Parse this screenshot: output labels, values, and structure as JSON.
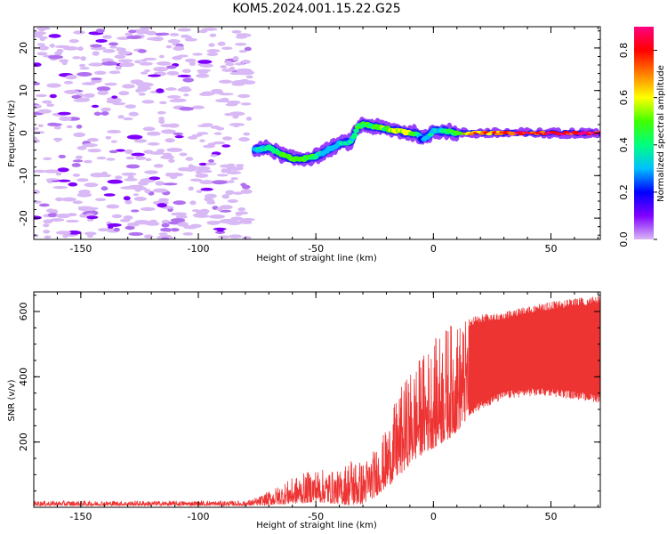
{
  "title": "KOM5.2024.001.15.22.G25",
  "chart_data": [
    {
      "type": "heatmap",
      "xlabel": "Height of straight line (km)",
      "ylabel": "Frequency (Hz)",
      "xlim": [
        -170,
        71
      ],
      "ylim": [
        -25,
        25
      ],
      "xticks": [
        -150,
        -100,
        -50,
        0,
        50
      ],
      "yticks": [
        -20,
        -10,
        0,
        10,
        20
      ],
      "colorbar": {
        "label": "Normalized spectral amplitude",
        "range": [
          0,
          0.9
        ],
        "ticks": [
          "0.0",
          "0.2",
          "0.4",
          "0.6",
          "0.8"
        ],
        "colormap": [
          "#d8b8f5",
          "#8000ff",
          "#0000ff",
          "#00c0ff",
          "#00ff80",
          "#40ff00",
          "#ffff00",
          "#ff8000",
          "#ff0000",
          "#ff0080"
        ]
      },
      "ridge": {
        "description_values": "peak frequency (Hz) vs height (km)",
        "x": [
          -76,
          -70,
          -65,
          -60,
          -55,
          -50,
          -45,
          -40,
          -35,
          -32,
          -30,
          -25,
          -20,
          -15,
          -10,
          -7,
          -5,
          -3,
          0,
          5,
          10,
          20,
          30,
          40,
          50,
          60,
          70
        ],
        "y": [
          -4,
          -3.5,
          -5,
          -6,
          -6,
          -5.5,
          -4,
          -2.5,
          -2,
          1.5,
          2,
          1.5,
          1,
          0.5,
          0,
          0,
          -1.5,
          -1,
          0.5,
          0.5,
          0,
          0,
          0,
          0,
          0,
          0,
          0
        ],
        "amplitude": [
          0.3,
          0.4,
          0.45,
          0.5,
          0.45,
          0.4,
          0.3,
          0.3,
          0.35,
          0.4,
          0.45,
          0.5,
          0.5,
          0.55,
          0.6,
          0.4,
          0.2,
          0.3,
          0.35,
          0.4,
          0.5,
          0.7,
          0.75,
          0.8,
          0.8,
          0.85,
          0.85
        ]
      }
    },
    {
      "type": "line",
      "xlabel": "Height of straight line (km)",
      "ylabel": "SNR (v/v)",
      "xlim": [
        -170,
        71
      ],
      "ylim": [
        0,
        660
      ],
      "xticks": [
        -150,
        -100,
        -50,
        0,
        50
      ],
      "yticks": [
        200,
        400,
        600
      ],
      "series": [
        {
          "color": "#ee3333",
          "envelope_x": [
            -170,
            -80,
            -75,
            -60,
            -50,
            -40,
            -35,
            -30,
            -25,
            -20,
            -15,
            -10,
            -5,
            0,
            5,
            10,
            15,
            20,
            30,
            40,
            50,
            60,
            71
          ],
          "envelope_low": [
            5,
            5,
            5,
            10,
            15,
            10,
            5,
            10,
            30,
            60,
            90,
            130,
            160,
            180,
            200,
            230,
            270,
            300,
            330,
            340,
            340,
            330,
            320
          ],
          "envelope_high": [
            20,
            20,
            30,
            90,
            120,
            110,
            160,
            140,
            180,
            240,
            350,
            420,
            470,
            510,
            560,
            570,
            580,
            590,
            600,
            620,
            630,
            640,
            650
          ]
        }
      ]
    }
  ]
}
